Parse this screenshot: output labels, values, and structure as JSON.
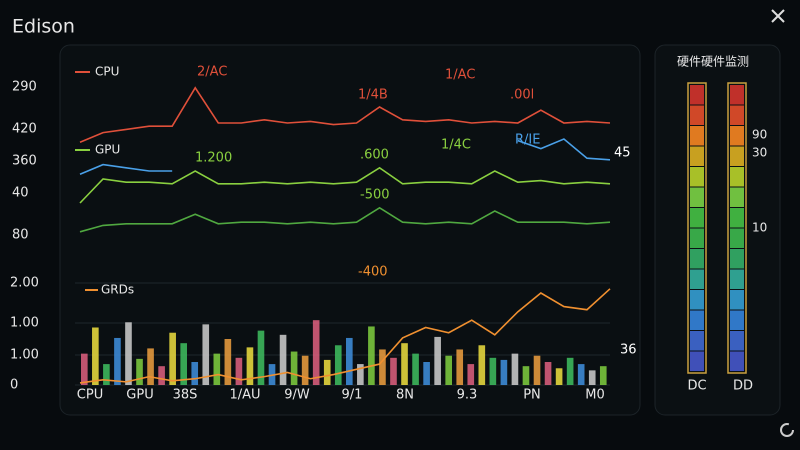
{
  "header": {
    "title": "Edison"
  },
  "upper_chart": {
    "ylim": [
      0,
      100
    ],
    "axis_labels": [
      "290",
      "420",
      "360",
      "40",
      "80"
    ],
    "series": [
      {
        "name": "CPU",
        "color": "#e0503a",
        "values": [
          58,
          64,
          66,
          68,
          68,
          92,
          70,
          70,
          72,
          70,
          71,
          69,
          70,
          80,
          72,
          71,
          72,
          70,
          71,
          70,
          78,
          70,
          71,
          70
        ]
      },
      {
        "name": "GPU",
        "color": "#8ad040",
        "values": [
          20,
          35,
          33,
          33,
          32,
          40,
          32,
          32,
          33,
          32,
          33,
          32,
          33,
          42,
          32,
          33,
          33,
          32,
          40,
          33,
          34,
          32,
          33,
          32
        ]
      },
      {
        "color": "#50a840",
        "values": [
          2,
          6,
          7,
          7,
          7,
          13,
          7,
          8,
          8,
          7,
          8,
          7,
          8,
          17,
          8,
          7,
          8,
          7,
          15,
          8,
          8,
          8,
          7,
          8
        ]
      },
      {
        "color": "#4aa0e8",
        "values": [
          38,
          44,
          42,
          40,
          40,
          null,
          null,
          null,
          null,
          null,
          null,
          null,
          null,
          null,
          null,
          null,
          null,
          null,
          null,
          59,
          54,
          60,
          48,
          47
        ]
      }
    ],
    "annotations": [
      {
        "text": "2/AC",
        "color": "#e0503a"
      },
      {
        "text": "1/4B",
        "color": "#e0503a"
      },
      {
        "text": "1/AC",
        "color": "#e0503a"
      },
      {
        "text": ".00l",
        "color": "#e0503a"
      },
      {
        "text": "1.200",
        "color": "#8ad040"
      },
      {
        "text": ".600",
        "color": "#8ad040"
      },
      {
        "text": "1/4C",
        "color": "#8ad040"
      },
      {
        "text": "R/IE",
        "color": "#4aa0e8"
      },
      {
        "text": "-500",
        "color": "#8ad040"
      },
      {
        "text": "45",
        "color": "#ffffff"
      }
    ]
  },
  "lower_chart": {
    "ylim": [
      0,
      110
    ],
    "axis_labels": [
      "2.00",
      "1.00",
      "1.00",
      "0"
    ],
    "x_labels": [
      "CPU",
      "GPU",
      "38S",
      "1/AU",
      "9/W",
      "9/1",
      "8N",
      "9.3",
      "PN",
      "M0"
    ],
    "bar_colors": [
      "#e06080",
      "#f0e040",
      "#40c060",
      "#4090e0",
      "#d0d0d0",
      "#80d040",
      "#f0a040"
    ],
    "bars": [
      30,
      55,
      20,
      45,
      60,
      25,
      35,
      18,
      50,
      40,
      22,
      58,
      30,
      44,
      26,
      36,
      52,
      20,
      48,
      32,
      28,
      62,
      24,
      38,
      45,
      20,
      56,
      34,
      26,
      40,
      30,
      22,
      46,
      28,
      34,
      20,
      38,
      26,
      24,
      30,
      18,
      28,
      22,
      16,
      26,
      20,
      14,
      18
    ],
    "line": {
      "name": "GRDs",
      "color": "#f09030",
      "values": [
        2,
        5,
        3,
        8,
        4,
        6,
        10,
        5,
        8,
        12,
        6,
        10,
        15,
        20,
        45,
        55,
        50,
        62,
        48,
        70,
        88,
        75,
        72,
        92
      ]
    },
    "annotations": [
      {
        "text": "-400",
        "color": "#f09030"
      },
      {
        "text": "36",
        "color": "#ffffff"
      }
    ]
  },
  "side_panel": {
    "title": "硬件硬件监测",
    "scale_labels": [
      "90",
      "30",
      "10"
    ],
    "meter_labels": [
      "DC",
      "DD"
    ]
  }
}
